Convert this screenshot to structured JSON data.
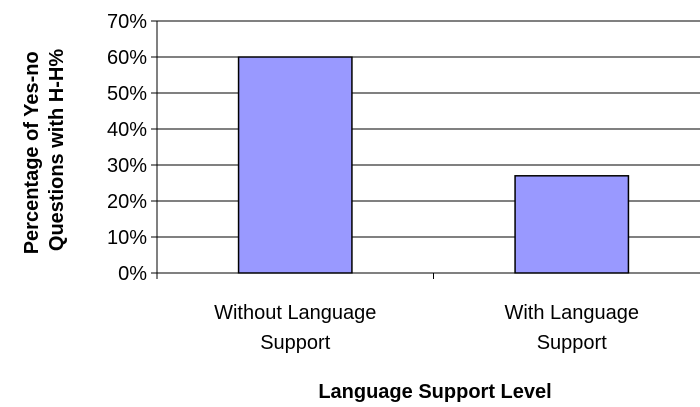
{
  "chart_data": {
    "type": "bar",
    "title": "",
    "categories": [
      [
        "Without Language",
        "Support"
      ],
      [
        "With Language",
        "Support"
      ]
    ],
    "values": [
      60,
      27
    ],
    "y_ticks": [
      "0%",
      "10%",
      "20%",
      "30%",
      "40%",
      "50%",
      "60%",
      "70%"
    ],
    "ylim": [
      0,
      70
    ],
    "xlabel": "Language Support Level",
    "ylabel": [
      "Percentage of Yes-no",
      "Questions with H-H%"
    ],
    "grid": true,
    "legend": "none",
    "bar_color": "#9999ff",
    "bar_stroke": "#000000"
  }
}
